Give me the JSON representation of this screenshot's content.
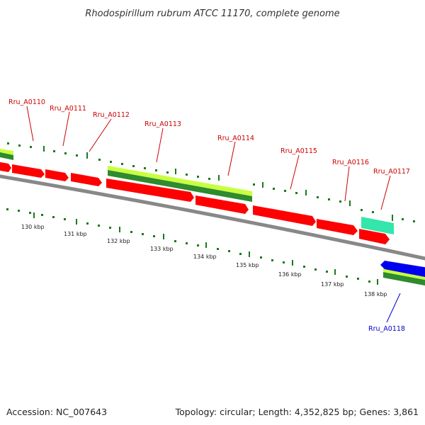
{
  "title": "Rhodospirillum rubrum ATCC 11170, complete genome",
  "footer": {
    "accession": "Accession: NC_007643",
    "summary": "Topology: circular; Length: 4,352,825 bp; Genes: 3,861"
  },
  "colors": {
    "forward_cds": "#ff0000",
    "reverse_cds": "#0000ee",
    "rna": "#33e6aa",
    "gene_light": "#c8ff40",
    "gene_dark": "#2e8b2e",
    "backbone": "#888888",
    "tick": "#1a7a1a",
    "label_forward": "#cc0000",
    "label_reverse": "#0000cc"
  },
  "gene_labels": [
    {
      "id": "Rru_A0110",
      "strand": "forward"
    },
    {
      "id": "Rru_A0111",
      "strand": "forward"
    },
    {
      "id": "Rru_A0112",
      "strand": "forward"
    },
    {
      "id": "Rru_A0113",
      "strand": "forward"
    },
    {
      "id": "Rru_A0114",
      "strand": "forward"
    },
    {
      "id": "Rru_A0115",
      "strand": "forward"
    },
    {
      "id": "Rru_A0116",
      "strand": "forward"
    },
    {
      "id": "Rru_A0117",
      "strand": "forward"
    },
    {
      "id": "Rru_A0118",
      "strand": "reverse"
    }
  ],
  "kbp_labels": [
    "130 kbp",
    "131 kbp",
    "132 kbp",
    "133 kbp",
    "134 kbp",
    "135 kbp",
    "136 kbp",
    "137 kbp",
    "138 kbp"
  ]
}
